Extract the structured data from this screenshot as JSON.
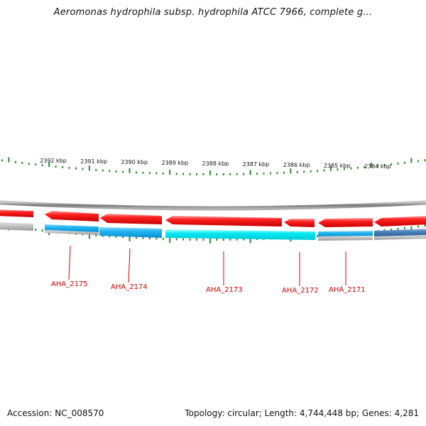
{
  "title": "Aeromonas hydrophila subsp. hydrophila ATCC 7966, complete g...",
  "footer": {
    "accession": "Accession: NC_008570",
    "summary": "Topology: circular; Length: 4,744,448 bp; Genes: 4,281"
  },
  "ruler": {
    "labels": [
      "2392 kbp",
      "2391 kbp",
      "2390 kbp",
      "2389 kbp",
      "2388 kbp",
      "2387 kbp",
      "2386 kbp",
      "2385 kbp",
      "2384 kbp"
    ]
  },
  "genes": [
    {
      "id": "AHA_2175",
      "strand": "reverse"
    },
    {
      "id": "AHA_2174",
      "strand": "reverse"
    },
    {
      "id": "AHA_2173",
      "strand": "reverse"
    },
    {
      "id": "AHA_2172",
      "strand": "reverse"
    },
    {
      "id": "AHA_2171",
      "strand": "reverse"
    }
  ],
  "colors": {
    "gene": "#ff1a1a",
    "cds_blue": "#1eb4f0",
    "cds_cyan": "#00e8f0",
    "cds_steel": "#4a80b8",
    "backbone": "#8c8c8c",
    "tick": "#2a8a2a",
    "label": "#d00000"
  }
}
